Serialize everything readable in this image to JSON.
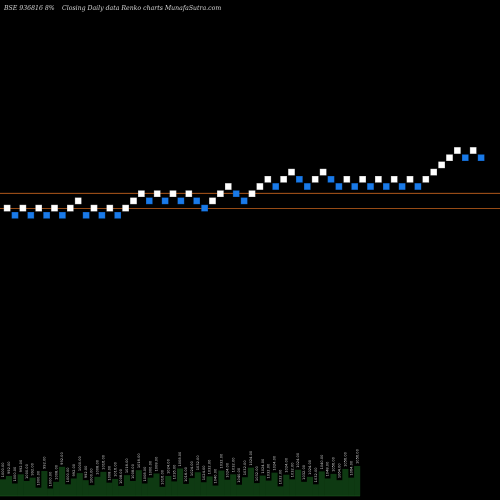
{
  "chart_data": {
    "type": "renko",
    "title": "BSE 936816  8%",
    "subtitle": "Closing Daily data  Renko  charts MunafaSutra.com",
    "colors": {
      "background": "#000000",
      "up_brick": "#ffffff",
      "down_brick": "#1a7ae8",
      "reference_line": "#c8641e",
      "volume": "#0e3a12"
    },
    "reference_levels": [
      1013,
      996
    ],
    "bricks": [
      {
        "value": 1000,
        "dir": "up"
      },
      {
        "value": 992,
        "dir": "down"
      },
      {
        "value": 1000,
        "dir": "up"
      },
      {
        "value": 992,
        "dir": "down"
      },
      {
        "value": 1000,
        "dir": "up"
      },
      {
        "value": 992,
        "dir": "down"
      },
      {
        "value": 1000,
        "dir": "up"
      },
      {
        "value": 992,
        "dir": "down"
      },
      {
        "value": 1000,
        "dir": "up"
      },
      {
        "value": 1008,
        "dir": "up"
      },
      {
        "value": 992,
        "dir": "down"
      },
      {
        "value": 1000,
        "dir": "up"
      },
      {
        "value": 992,
        "dir": "down"
      },
      {
        "value": 1000,
        "dir": "up"
      },
      {
        "value": 992,
        "dir": "down"
      },
      {
        "value": 1000,
        "dir": "up"
      },
      {
        "value": 1008,
        "dir": "up"
      },
      {
        "value": 1016,
        "dir": "up"
      },
      {
        "value": 1008,
        "dir": "down"
      },
      {
        "value": 1016,
        "dir": "up"
      },
      {
        "value": 1008,
        "dir": "down"
      },
      {
        "value": 1016,
        "dir": "up"
      },
      {
        "value": 1008,
        "dir": "down"
      },
      {
        "value": 1016,
        "dir": "up"
      },
      {
        "value": 1008,
        "dir": "down"
      },
      {
        "value": 1000,
        "dir": "down"
      },
      {
        "value": 1008,
        "dir": "up"
      },
      {
        "value": 1016,
        "dir": "up"
      },
      {
        "value": 1024,
        "dir": "up"
      },
      {
        "value": 1016,
        "dir": "down"
      },
      {
        "value": 1008,
        "dir": "down"
      },
      {
        "value": 1016,
        "dir": "up"
      },
      {
        "value": 1024,
        "dir": "up"
      },
      {
        "value": 1032,
        "dir": "up"
      },
      {
        "value": 1024,
        "dir": "down"
      },
      {
        "value": 1032,
        "dir": "up"
      },
      {
        "value": 1040,
        "dir": "up"
      },
      {
        "value": 1032,
        "dir": "down"
      },
      {
        "value": 1024,
        "dir": "down"
      },
      {
        "value": 1032,
        "dir": "up"
      },
      {
        "value": 1040,
        "dir": "up"
      },
      {
        "value": 1032,
        "dir": "down"
      },
      {
        "value": 1024,
        "dir": "down"
      },
      {
        "value": 1032,
        "dir": "up"
      },
      {
        "value": 1024,
        "dir": "down"
      },
      {
        "value": 1032,
        "dir": "up"
      },
      {
        "value": 1024,
        "dir": "down"
      },
      {
        "value": 1032,
        "dir": "up"
      },
      {
        "value": 1024,
        "dir": "down"
      },
      {
        "value": 1032,
        "dir": "up"
      },
      {
        "value": 1024,
        "dir": "down"
      },
      {
        "value": 1032,
        "dir": "up"
      },
      {
        "value": 1024,
        "dir": "down"
      },
      {
        "value": 1032,
        "dir": "up"
      },
      {
        "value": 1040,
        "dir": "up"
      },
      {
        "value": 1048,
        "dir": "up"
      },
      {
        "value": 1056,
        "dir": "up"
      },
      {
        "value": 1064,
        "dir": "up"
      },
      {
        "value": 1056,
        "dir": "down"
      },
      {
        "value": 1064,
        "dir": "up"
      },
      {
        "value": 1056,
        "dir": "down"
      }
    ],
    "volume": [
      {
        "v": 40,
        "label": "1000.00"
      },
      {
        "v": 48,
        "label": "992.00"
      },
      {
        "v": 30,
        "label": "1000.00"
      },
      {
        "v": 52,
        "label": "992.00"
      },
      {
        "v": 36,
        "label": "1000.00"
      },
      {
        "v": 44,
        "label": "992.00"
      },
      {
        "v": 20,
        "label": "1000.00"
      },
      {
        "v": 60,
        "label": "992.00"
      },
      {
        "v": 18,
        "label": "1000.00"
      },
      {
        "v": 34,
        "label": "1008.00"
      },
      {
        "v": 70,
        "label": "992.00"
      },
      {
        "v": 28,
        "label": "1000.00"
      },
      {
        "v": 42,
        "label": "992.00"
      },
      {
        "v": 55,
        "label": "1000.00"
      },
      {
        "v": 38,
        "label": "992.00"
      },
      {
        "v": 26,
        "label": "1000.00"
      },
      {
        "v": 46,
        "label": "1008.00"
      },
      {
        "v": 58,
        "label": "1016.00"
      },
      {
        "v": 32,
        "label": "1008.00"
      },
      {
        "v": 41,
        "label": "1016.00"
      },
      {
        "v": 24,
        "label": "1008.00"
      },
      {
        "v": 50,
        "label": "1016.00"
      },
      {
        "v": 36,
        "label": "1008.00"
      },
      {
        "v": 62,
        "label": "1016.00"
      },
      {
        "v": 30,
        "label": "1008.00"
      },
      {
        "v": 44,
        "label": "1000.00"
      },
      {
        "v": 54,
        "label": "1008.00"
      },
      {
        "v": 22,
        "label": "1016.00"
      },
      {
        "v": 48,
        "label": "1024.00"
      },
      {
        "v": 35,
        "label": "1016.00"
      },
      {
        "v": 66,
        "label": "1008.00"
      },
      {
        "v": 29,
        "label": "1016.00"
      },
      {
        "v": 43,
        "label": "1024.00"
      },
      {
        "v": 57,
        "label": "1032.00"
      },
      {
        "v": 33,
        "label": "1024.00"
      },
      {
        "v": 47,
        "label": "1032.00"
      },
      {
        "v": 25,
        "label": "1040.00"
      },
      {
        "v": 61,
        "label": "1032.00"
      },
      {
        "v": 39,
        "label": "1024.00"
      },
      {
        "v": 52,
        "label": "1032.00"
      },
      {
        "v": 27,
        "label": "1040.00"
      },
      {
        "v": 45,
        "label": "1032.00"
      },
      {
        "v": 68,
        "label": "1024.00"
      },
      {
        "v": 31,
        "label": "1032.00"
      },
      {
        "v": 49,
        "label": "1024.00"
      },
      {
        "v": 37,
        "label": "1032.00"
      },
      {
        "v": 56,
        "label": "1024.00"
      },
      {
        "v": 23,
        "label": "1032.00"
      },
      {
        "v": 51,
        "label": "1024.00"
      },
      {
        "v": 40,
        "label": "1032.00"
      },
      {
        "v": 63,
        "label": "1024.00"
      },
      {
        "v": 34,
        "label": "1032.00"
      },
      {
        "v": 46,
        "label": "1024.00"
      },
      {
        "v": 28,
        "label": "1032.00"
      },
      {
        "v": 59,
        "label": "1040.00"
      },
      {
        "v": 42,
        "label": "1048.00"
      },
      {
        "v": 53,
        "label": "1056.00"
      },
      {
        "v": 38,
        "label": "1064.00"
      },
      {
        "v": 65,
        "label": "1056.00"
      },
      {
        "v": 44,
        "label": "1064.00"
      },
      {
        "v": 72,
        "label": "1056.00"
      }
    ]
  }
}
